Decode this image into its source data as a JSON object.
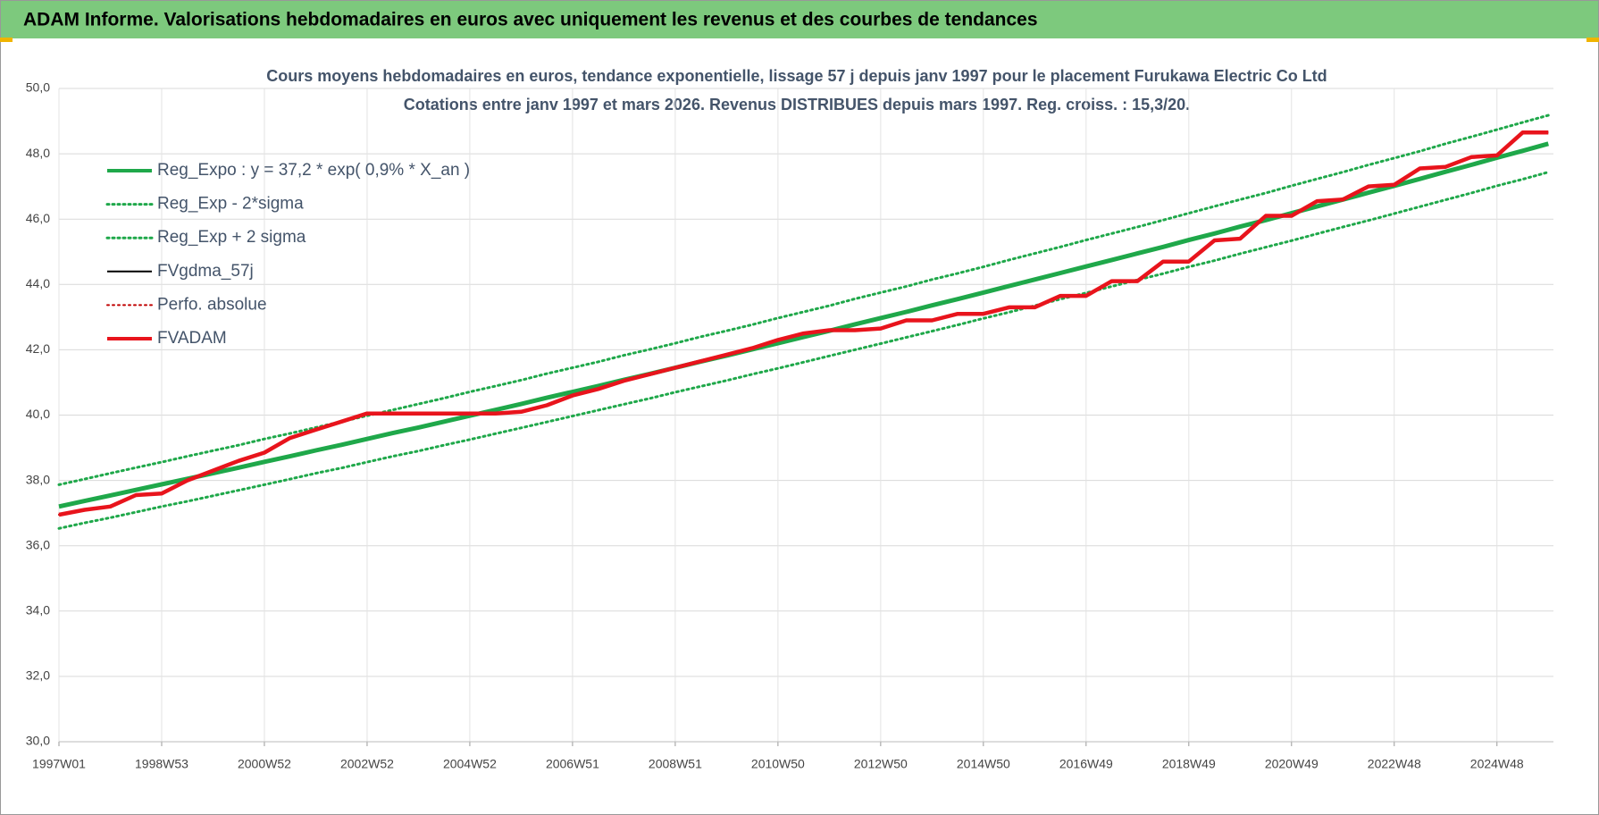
{
  "header": {
    "title": "ADAM Informe. Valorisations hebdomadaires en euros avec uniquement les revenus et des courbes de tendances"
  },
  "chart_data": {
    "type": "line",
    "title": "Cours moyens hebdomadaires en euros, tendance exponentielle, lissage 57 j depuis janv 1997  pour le placement Furukawa Electric Co Ltd",
    "subtitle": "Cotations entre janv 1997 et mars 2026. Revenus DISTRIBUES depuis mars 1997. Reg. croiss. : 15,3/20.",
    "categories": [
      "1997W01",
      null,
      null,
      null,
      "1998W53",
      null,
      null,
      null,
      "2000W52",
      null,
      null,
      null,
      "2002W52",
      null,
      null,
      null,
      "2004W52",
      null,
      null,
      null,
      "2006W51",
      null,
      null,
      null,
      "2008W51",
      null,
      null,
      null,
      "2010W50",
      null,
      null,
      null,
      "2012W50",
      null,
      null,
      null,
      "2014W50",
      null,
      null,
      null,
      "2016W49",
      null,
      null,
      null,
      "2018W49",
      null,
      null,
      null,
      "2020W49",
      null,
      null,
      null,
      "2022W48",
      null,
      null,
      null,
      "2024W48",
      null,
      null
    ],
    "ylim": [
      30,
      50
    ],
    "yticks": [
      {
        "value": 30,
        "label": "30,0"
      },
      {
        "value": 32,
        "label": "32,0"
      },
      {
        "value": 34,
        "label": "34,0"
      },
      {
        "value": 36,
        "label": "36,0"
      },
      {
        "value": 38,
        "label": "38,0"
      },
      {
        "value": 40,
        "label": "40,0"
      },
      {
        "value": 42,
        "label": "42,0"
      },
      {
        "value": 44,
        "label": "44,0"
      },
      {
        "value": 46,
        "label": "46,0"
      },
      {
        "value": 48,
        "label": "48,0"
      },
      {
        "value": 50,
        "label": "50,0"
      }
    ],
    "grid": true,
    "legend": "upper left",
    "series": [
      {
        "name": "Reg_Expo : y = 37,2 * exp( 0,9% *  X_an )",
        "color": "#1fa84a",
        "style": "solid",
        "width": 5,
        "values": [
          37.2,
          37.37,
          37.54,
          37.71,
          37.88,
          38.05,
          38.22,
          38.39,
          38.57,
          38.74,
          38.92,
          39.09,
          39.27,
          39.45,
          39.62,
          39.8,
          39.98,
          40.16,
          40.34,
          40.53,
          40.71,
          40.89,
          41.08,
          41.26,
          41.45,
          41.64,
          41.82,
          42.01,
          42.2,
          42.39,
          42.58,
          42.78,
          42.97,
          43.16,
          43.36,
          43.55,
          43.75,
          43.95,
          44.15,
          44.35,
          44.55,
          44.75,
          44.95,
          45.15,
          45.36,
          45.56,
          45.77,
          45.97,
          46.18,
          46.39,
          46.6,
          46.81,
          47.02,
          47.23,
          47.45,
          47.66,
          47.88,
          48.09,
          48.31
        ]
      },
      {
        "name": "Reg_Exp - 2*sigma",
        "color": "#1fa84a",
        "style": "dotted",
        "width": 3,
        "values": [
          36.53,
          36.7,
          36.86,
          37.03,
          37.2,
          37.36,
          37.53,
          37.7,
          37.87,
          38.04,
          38.22,
          38.38,
          38.56,
          38.74,
          38.9,
          39.08,
          39.25,
          39.43,
          39.61,
          39.79,
          39.97,
          40.15,
          40.33,
          40.51,
          40.7,
          40.88,
          41.06,
          41.25,
          41.43,
          41.62,
          41.81,
          42.0,
          42.19,
          42.38,
          42.57,
          42.76,
          42.96,
          43.15,
          43.35,
          43.55,
          43.74,
          43.94,
          44.14,
          44.33,
          44.54,
          44.73,
          44.94,
          45.14,
          45.34,
          45.55,
          45.76,
          45.96,
          46.17,
          46.38,
          46.59,
          46.8,
          47.02,
          47.22,
          47.44
        ]
      },
      {
        "name": "Reg_Exp + 2 sigma",
        "color": "#1fa84a",
        "style": "dotted",
        "width": 3,
        "values": [
          37.87,
          38.04,
          38.22,
          38.39,
          38.56,
          38.74,
          38.91,
          39.08,
          39.27,
          39.44,
          39.62,
          39.8,
          39.98,
          40.16,
          40.34,
          40.52,
          40.71,
          40.89,
          41.07,
          41.27,
          41.45,
          41.63,
          41.83,
          42.01,
          42.2,
          42.4,
          42.58,
          42.77,
          42.97,
          43.16,
          43.35,
          43.56,
          43.75,
          43.94,
          44.15,
          44.34,
          44.54,
          44.75,
          44.95,
          45.15,
          45.36,
          45.56,
          45.76,
          45.97,
          46.18,
          46.39,
          46.6,
          46.8,
          47.02,
          47.23,
          47.44,
          47.66,
          47.87,
          48.08,
          48.31,
          48.52,
          48.74,
          48.96,
          49.18
        ]
      },
      {
        "name": "FVgdma_57j",
        "color": "#000000",
        "style": "solid",
        "width": 2,
        "values": [
          36.95,
          37.1,
          37.2,
          37.55,
          37.6,
          38.0,
          38.3,
          38.6,
          38.85,
          39.3,
          39.55,
          39.8,
          40.05,
          40.05,
          40.05,
          40.05,
          40.05,
          40.05,
          40.1,
          40.3,
          40.6,
          40.8,
          41.05,
          41.25,
          41.45,
          41.65,
          41.85,
          42.05,
          42.3,
          42.5,
          42.6,
          42.6,
          42.65,
          42.9,
          42.9,
          43.1,
          43.1,
          43.3,
          43.3,
          43.65,
          43.65,
          44.1,
          44.1,
          44.7,
          44.7,
          45.35,
          45.4,
          46.1,
          46.1,
          46.55,
          46.6,
          47.0,
          47.05,
          47.55,
          47.6,
          47.9,
          47.95,
          48.65,
          48.65
        ]
      },
      {
        "name": "Perfo. absolue",
        "color": "#c00000",
        "style": "dotted",
        "width": 2,
        "values": [
          36.95,
          37.1,
          37.2,
          37.55,
          37.6,
          38.0,
          38.3,
          38.6,
          38.85,
          39.3,
          39.55,
          39.8,
          40.05,
          40.05,
          40.05,
          40.05,
          40.05,
          40.05,
          40.1,
          40.3,
          40.6,
          40.8,
          41.05,
          41.25,
          41.45,
          41.65,
          41.85,
          42.05,
          42.3,
          42.5,
          42.6,
          42.6,
          42.65,
          42.9,
          42.9,
          43.1,
          43.1,
          43.3,
          43.3,
          43.65,
          43.65,
          44.1,
          44.1,
          44.7,
          44.7,
          45.35,
          45.4,
          46.1,
          46.1,
          46.55,
          46.6,
          47.0,
          47.05,
          47.55,
          47.6,
          47.9,
          47.95,
          48.65,
          48.65
        ]
      },
      {
        "name": "FVADAM",
        "color": "#e8141c",
        "style": "solid",
        "width": 4.5,
        "values": [
          36.95,
          37.1,
          37.2,
          37.55,
          37.6,
          38.0,
          38.3,
          38.6,
          38.85,
          39.3,
          39.55,
          39.8,
          40.05,
          40.05,
          40.05,
          40.05,
          40.05,
          40.05,
          40.1,
          40.3,
          40.6,
          40.8,
          41.05,
          41.25,
          41.45,
          41.65,
          41.85,
          42.05,
          42.3,
          42.5,
          42.6,
          42.6,
          42.65,
          42.9,
          42.9,
          43.1,
          43.1,
          43.3,
          43.3,
          43.65,
          43.65,
          44.1,
          44.1,
          44.7,
          44.7,
          45.35,
          45.4,
          46.1,
          46.1,
          46.55,
          46.6,
          47.0,
          47.05,
          47.55,
          47.6,
          47.9,
          47.95,
          48.65,
          48.65
        ]
      }
    ]
  }
}
